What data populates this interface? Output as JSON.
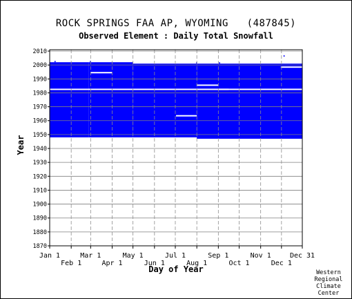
{
  "title": "ROCK SPRINGS FAA AP, WYOMING   (487845)",
  "subtitle": "Observed Element : Daily Total Snowfall",
  "credit": [
    "Western",
    "Regional",
    "Climate",
    "Center"
  ],
  "chart_data": {
    "type": "heatmap",
    "xlabel": "Day of Year",
    "ylabel": "Year",
    "x_ticks_upper": [
      "Jan 1",
      "Mar 1",
      "May 1",
      "Jul 1",
      "Sep 1",
      "Nov 1",
      "Dec 31"
    ],
    "x_ticks_lower": [
      "Feb 1",
      "Apr 1",
      "Jun 1",
      "Aug 1",
      "Oct 1",
      "Dec 1"
    ],
    "month_start_days": [
      1,
      32,
      60,
      91,
      121,
      152,
      182,
      213,
      244,
      274,
      305,
      335,
      365
    ],
    "upper_tick_days": [
      1,
      60,
      121,
      182,
      244,
      305,
      365
    ],
    "lower_tick_days": [
      32,
      91,
      152,
      213,
      274,
      335
    ],
    "xlim": [
      1,
      365
    ],
    "ylim": [
      1870,
      2011
    ],
    "y_ticks": [
      1870,
      1880,
      1890,
      1900,
      1910,
      1920,
      1930,
      1940,
      1950,
      1960,
      1970,
      1980,
      1990,
      2000,
      2010
    ],
    "grid": true,
    "color": "#0000ff",
    "data_coverage": [
      {
        "day_start": 1,
        "day_end": 57,
        "year_start": 1948,
        "year_end": 2001
      },
      {
        "day_start": 57,
        "day_end": 121,
        "year_start": 1948,
        "year_end": 2001
      },
      {
        "day_start": 121,
        "day_end": 213,
        "year_start": 1948,
        "year_end": 2000
      },
      {
        "day_start": 213,
        "day_end": 365,
        "year_start": 1947,
        "year_end": 2000
      }
    ],
    "missing_periods": [
      {
        "day_start": 1,
        "day_end": 365,
        "year": 1982
      },
      {
        "day_start": 60,
        "day_end": 91,
        "year": 1994
      },
      {
        "day_start": 183,
        "day_end": 213,
        "year": 1963
      },
      {
        "day_start": 213,
        "day_end": 244,
        "year": 1985
      },
      {
        "day_start": 244,
        "day_end": 259,
        "year": 1982
      },
      {
        "day_start": 334,
        "day_end": 365,
        "year": 1998
      }
    ],
    "isolated_points": [
      {
        "day": 8,
        "year": 2002
      },
      {
        "day": 59,
        "year": 2002
      },
      {
        "day": 338,
        "year": 2006
      },
      {
        "day": 212,
        "year": 2001
      },
      {
        "day": 245,
        "year": 2001
      }
    ]
  }
}
